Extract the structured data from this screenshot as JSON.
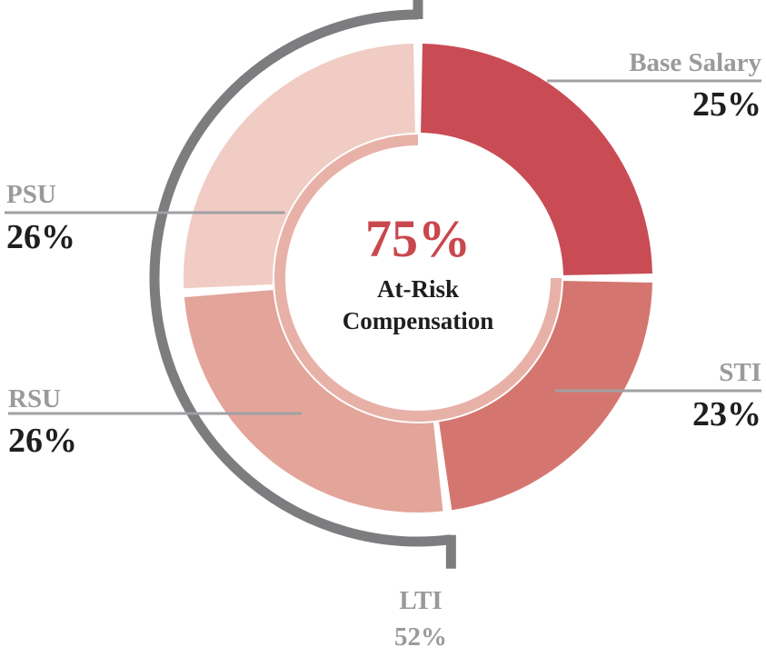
{
  "chart_data": {
    "type": "pie",
    "segments": [
      {
        "label": "Base Salary",
        "value": 25,
        "display": "25%",
        "color": "#c94c55"
      },
      {
        "label": "STI",
        "value": 23,
        "display": "23%",
        "color": "#d4766f"
      },
      {
        "label": "RSU",
        "value": 26,
        "display": "26%",
        "color": "#e3a49a"
      },
      {
        "label": "PSU",
        "value": 26,
        "display": "26%",
        "color": "#f0ccc4"
      }
    ],
    "inner_ring": {
      "value": 75,
      "color": "#e8b1a8",
      "track_color": "#ecc4bc"
    },
    "group_bracket": {
      "label": "LTI",
      "value": 52,
      "display": "52%",
      "color": "#7d7d80"
    },
    "center": {
      "value": "75%",
      "line1": "At-Risk",
      "line2": "Compensation"
    },
    "leader_color": "#a0a0a4"
  }
}
